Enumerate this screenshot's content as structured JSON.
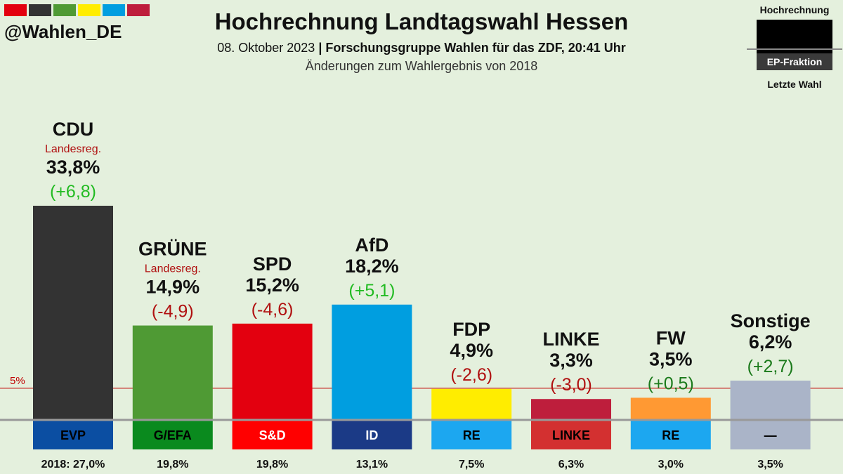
{
  "header": {
    "handle": "@Wahlen_DE",
    "title": "Hochrechnung Landtagswahl Hessen",
    "date": "08. Oktober 2023",
    "separator": " | ",
    "source": "Forschungsgruppe Wahlen für das ZDF, 20:41 Uhr",
    "note": "Änderungen zum Wahlergebnis von 2018",
    "flag_colors": [
      "#e3000f",
      "#333333",
      "#4f9a34",
      "#ffed00",
      "#009ee0",
      "#be1e3c"
    ]
  },
  "legend": {
    "top": "Hochrechnung",
    "box_label": "EP-Fraktion",
    "bottom": "Letzte Wahl"
  },
  "chart_data": {
    "type": "bar",
    "title": "Hochrechnung Landtagswahl Hessen",
    "categories": [
      "CDU",
      "GRÜNE",
      "SPD",
      "AfD",
      "FDP",
      "LINKE",
      "FW",
      "Sonstige"
    ],
    "values": [
      33.8,
      14.9,
      15.2,
      18.2,
      4.9,
      3.3,
      3.5,
      6.2
    ],
    "value_labels": [
      "33,8%",
      "14,9%",
      "15,2%",
      "18,2%",
      "4,9%",
      "3,3%",
      "3,5%",
      "6,2%"
    ],
    "changes": [
      6.8,
      -4.9,
      -4.6,
      5.1,
      -2.6,
      -3.0,
      0.5,
      2.7
    ],
    "change_labels": [
      "(+6,8)",
      "(-4,9)",
      "(-4,6)",
      "(+5,1)",
      "(-2,6)",
      "(-3,0)",
      "(+0,5)",
      "(+2,7)"
    ],
    "subtexts": [
      "Landesreg.",
      "Landesreg.",
      "",
      "",
      "",
      "",
      "",
      ""
    ],
    "bar_colors": [
      "#333333",
      "#4f9a34",
      "#e3000f",
      "#009ee0",
      "#ffed00",
      "#be1e3c",
      "#ff9933",
      "#aab4c8"
    ],
    "change_colors": [
      "#22bb22",
      "#b01010",
      "#b01010",
      "#22bb22",
      "#b01010",
      "#b01010",
      "#1b7a1b",
      "#1b7a1b"
    ],
    "ep_groups": [
      "EVP",
      "G/EFA",
      "S&D",
      "ID",
      "RE",
      "LINKE",
      "RE",
      "—"
    ],
    "ep_colors": [
      "#0b4ea2",
      "#0a8a1e",
      "#ff0000",
      "#1b3a86",
      "#1ca7f0",
      "#d33030",
      "#1ca7f0",
      "#aab4c8"
    ],
    "ep_text_colors": [
      "#000000",
      "#000000",
      "#ffffff",
      "#ffffff",
      "#000000",
      "#000000",
      "#000000",
      "#000000"
    ],
    "previous_labels": [
      "2018: 27,0%",
      "19,8%",
      "19,8%",
      "13,1%",
      "7,5%",
      "6,3%",
      "3,0%",
      "3,5%"
    ],
    "previous_values": [
      27.0,
      19.8,
      19.8,
      13.1,
      7.5,
      6.3,
      3.0,
      3.5
    ],
    "threshold": 5,
    "threshold_label": "5%",
    "ylim": [
      0,
      36
    ]
  }
}
